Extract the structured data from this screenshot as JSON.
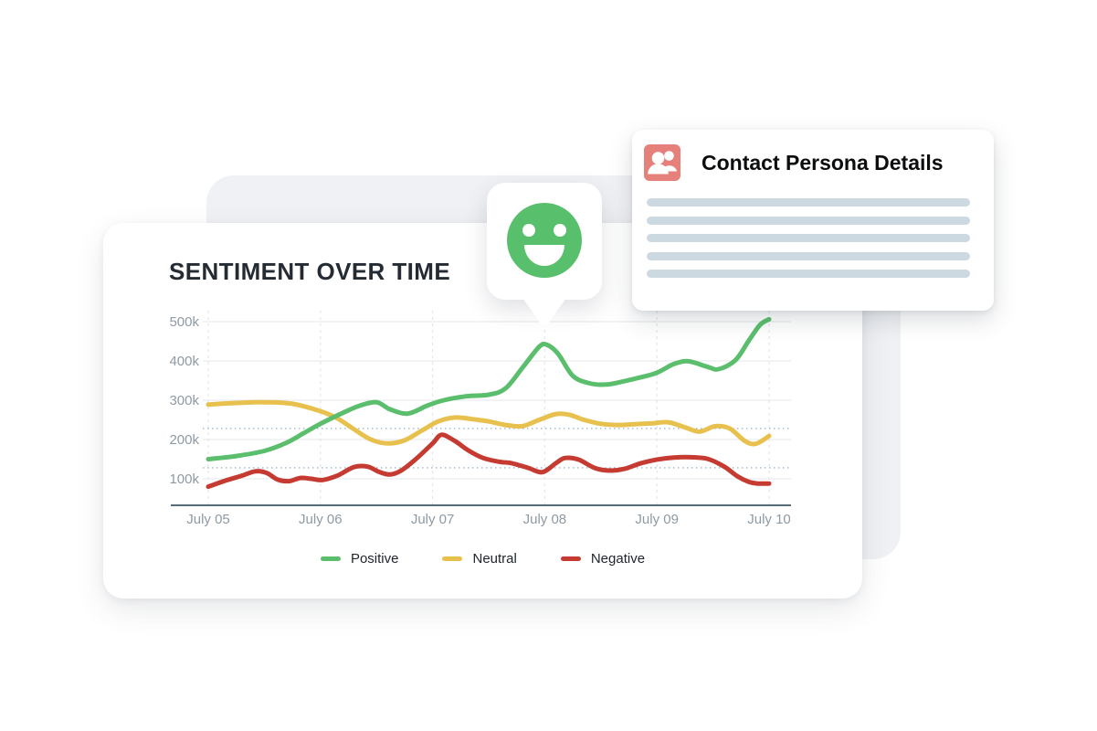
{
  "page": {
    "background_color": "#ffffff"
  },
  "sentiment_card": {
    "title": "SENTIMENT OVER TIME"
  },
  "persona_card": {
    "title": "Contact Persona Details",
    "icon": "users-icon",
    "icon_bg_color": "#e5807a",
    "icon_glyph_color": "#ffffff",
    "placeholder_line_count": 5,
    "placeholder_color": "#cdd9e0"
  },
  "sentiment_bubble": {
    "icon": "smiley-face-icon",
    "smiley_color": "#58c06c"
  },
  "chart_data": {
    "type": "line",
    "title": "SENTIMENT OVER TIME",
    "x_tick_labels": [
      "July 05",
      "July 06",
      "July 07",
      "July 08",
      "July 09",
      "July 10"
    ],
    "y_tick_labels": [
      "500k",
      "400k",
      "300k",
      "200k",
      "100k"
    ],
    "y_ticks_thousands": [
      500,
      400,
      300,
      200,
      100
    ],
    "unit": "thousands",
    "grid": true,
    "legend_position": "bottom",
    "reference_lines_thousands": [
      228,
      128
    ],
    "reference_line_color": "#85a7c0",
    "axis_color": "#566b76",
    "gridline_color": "#e9ecee",
    "vertical_gridline_color": "#e3e7ea",
    "tick_label_color": "#8e9aa4",
    "series": [
      {
        "name": "Positive",
        "color": "#5abe6d",
        "points_day_value_k": [
          [
            0,
            150
          ],
          [
            0.25,
            158
          ],
          [
            0.5,
            171
          ],
          [
            0.7,
            192
          ],
          [
            0.85,
            216
          ],
          [
            1,
            240
          ],
          [
            1.2,
            268
          ],
          [
            1.35,
            286
          ],
          [
            1.5,
            295
          ],
          [
            1.62,
            277
          ],
          [
            1.78,
            266
          ],
          [
            1.95,
            286
          ],
          [
            2.1,
            300
          ],
          [
            2.3,
            310
          ],
          [
            2.5,
            314
          ],
          [
            2.65,
            330
          ],
          [
            2.8,
            382
          ],
          [
            2.95,
            436
          ],
          [
            3.02,
            441
          ],
          [
            3.12,
            418
          ],
          [
            3.25,
            362
          ],
          [
            3.4,
            343
          ],
          [
            3.55,
            340
          ],
          [
            3.7,
            348
          ],
          [
            3.85,
            358
          ],
          [
            4,
            370
          ],
          [
            4.15,
            392
          ],
          [
            4.28,
            399
          ],
          [
            4.45,
            385
          ],
          [
            4.55,
            379
          ],
          [
            4.7,
            402
          ],
          [
            4.82,
            452
          ],
          [
            4.92,
            492
          ],
          [
            5,
            506
          ]
        ]
      },
      {
        "name": "Neutral",
        "color": "#e8c04d",
        "points_day_value_k": [
          [
            0,
            289
          ],
          [
            0.25,
            293
          ],
          [
            0.5,
            295
          ],
          [
            0.75,
            291
          ],
          [
            1,
            272
          ],
          [
            1.15,
            254
          ],
          [
            1.3,
            226
          ],
          [
            1.45,
            200
          ],
          [
            1.6,
            190
          ],
          [
            1.75,
            198
          ],
          [
            1.9,
            222
          ],
          [
            2.05,
            246
          ],
          [
            2.2,
            256
          ],
          [
            2.35,
            252
          ],
          [
            2.5,
            246
          ],
          [
            2.65,
            237
          ],
          [
            2.8,
            234
          ],
          [
            2.95,
            250
          ],
          [
            3.1,
            265
          ],
          [
            3.22,
            263
          ],
          [
            3.35,
            250
          ],
          [
            3.5,
            240
          ],
          [
            3.65,
            237
          ],
          [
            3.8,
            239
          ],
          [
            3.95,
            241
          ],
          [
            4.1,
            244
          ],
          [
            4.25,
            231
          ],
          [
            4.38,
            220
          ],
          [
            4.52,
            234
          ],
          [
            4.65,
            228
          ],
          [
            4.78,
            197
          ],
          [
            4.88,
            189
          ],
          [
            5,
            209
          ]
        ]
      },
      {
        "name": "Negative",
        "color": "#c53b32",
        "points_day_value_k": [
          [
            0,
            80
          ],
          [
            0.15,
            95
          ],
          [
            0.3,
            108
          ],
          [
            0.42,
            119
          ],
          [
            0.52,
            115
          ],
          [
            0.62,
            98
          ],
          [
            0.72,
            94
          ],
          [
            0.82,
            102
          ],
          [
            0.92,
            100
          ],
          [
            1.02,
            97
          ],
          [
            1.15,
            108
          ],
          [
            1.3,
            130
          ],
          [
            1.42,
            131
          ],
          [
            1.52,
            118
          ],
          [
            1.62,
            111
          ],
          [
            1.72,
            121
          ],
          [
            1.85,
            150
          ],
          [
            2,
            190
          ],
          [
            2.08,
            212
          ],
          [
            2.2,
            196
          ],
          [
            2.32,
            172
          ],
          [
            2.45,
            153
          ],
          [
            2.6,
            143
          ],
          [
            2.7,
            140
          ],
          [
            2.85,
            128
          ],
          [
            2.98,
            117
          ],
          [
            3.1,
            140
          ],
          [
            3.18,
            153
          ],
          [
            3.3,
            149
          ],
          [
            3.45,
            127
          ],
          [
            3.58,
            121
          ],
          [
            3.72,
            126
          ],
          [
            3.85,
            139
          ],
          [
            4,
            149
          ],
          [
            4.15,
            154
          ],
          [
            4.3,
            155
          ],
          [
            4.45,
            151
          ],
          [
            4.6,
            131
          ],
          [
            4.72,
            106
          ],
          [
            4.82,
            92
          ],
          [
            4.9,
            88
          ],
          [
            5,
            88
          ]
        ]
      }
    ]
  }
}
